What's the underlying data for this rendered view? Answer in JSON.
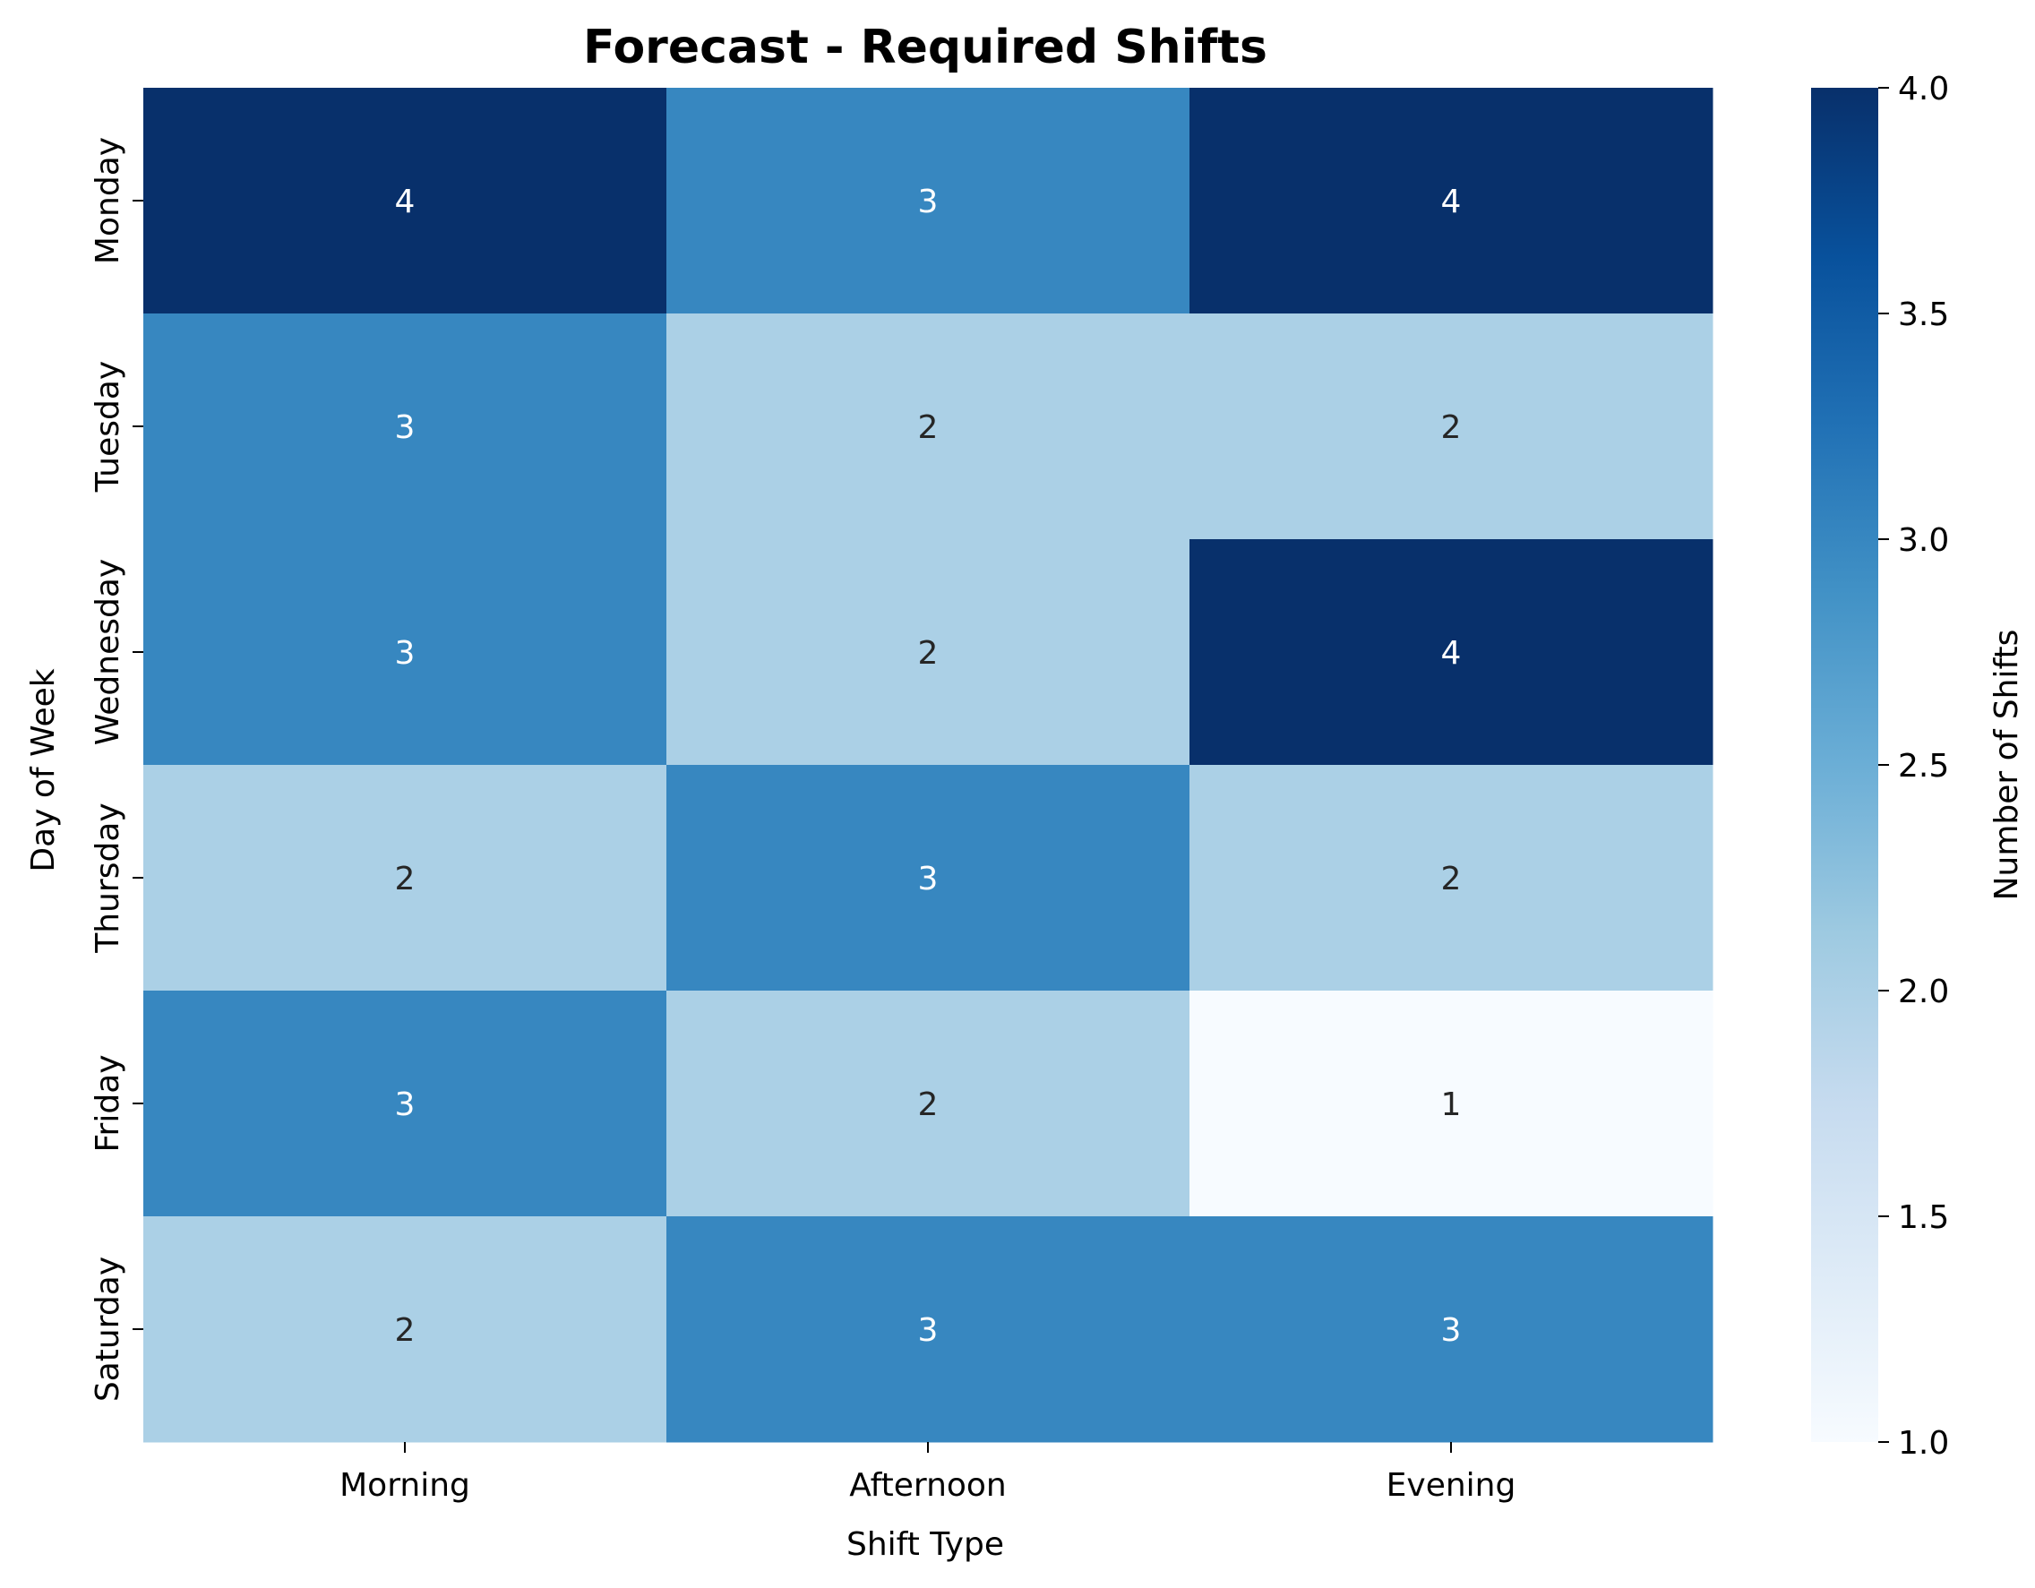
{
  "chart_data": {
    "type": "heatmap",
    "title": "Forecast - Required Shifts",
    "xlabel": "Shift Type",
    "ylabel": "Day of Week",
    "x_categories": [
      "Morning",
      "Afternoon",
      "Evening"
    ],
    "y_categories": [
      "Monday",
      "Tuesday",
      "Wednesday",
      "Thursday",
      "Friday",
      "Saturday"
    ],
    "values": [
      [
        4,
        3,
        4
      ],
      [
        3,
        2,
        2
      ],
      [
        3,
        2,
        4
      ],
      [
        2,
        3,
        2
      ],
      [
        3,
        2,
        1
      ],
      [
        2,
        3,
        3
      ]
    ],
    "colormap": "Blues",
    "vmin": 1.0,
    "vmax": 4.0,
    "colorbar": {
      "label": "Number of Shifts",
      "ticks": [
        "1.0",
        "1.5",
        "2.0",
        "2.5",
        "3.0",
        "3.5",
        "4.0"
      ]
    },
    "colors": {
      "low": "#f7fbff",
      "high": "#08306b",
      "annotation_dark": "#262626",
      "annotation_light": "#ffffff"
    }
  }
}
